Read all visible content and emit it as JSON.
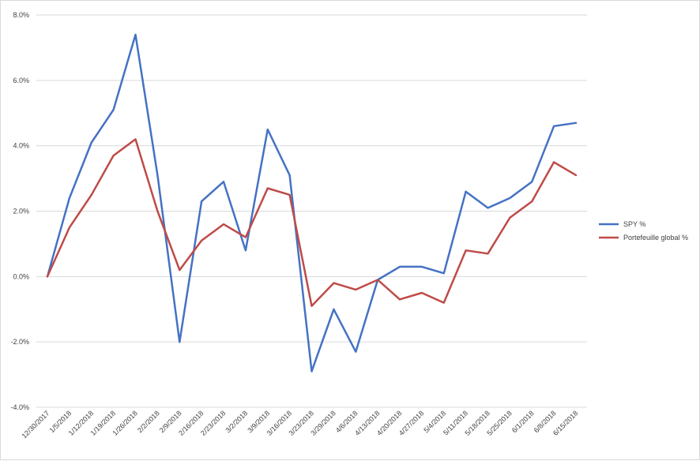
{
  "chart_data": {
    "type": "line",
    "title": "",
    "xlabel": "",
    "ylabel": "",
    "ylim": [
      -0.04,
      0.08
    ],
    "y_ticks": [
      "8.0%",
      "6.0%",
      "4.0%",
      "2.0%",
      "0.0%",
      "-2.0%",
      "-4.0%"
    ],
    "y_tick_values": [
      0.08,
      0.06,
      0.04,
      0.02,
      0.0,
      -0.02,
      -0.04
    ],
    "grid": true,
    "legend_position": "right",
    "categories": [
      "12/30/2017",
      "1/5/2018",
      "1/12/2018",
      "1/19/2018",
      "1/26/2018",
      "2/2/2018",
      "2/9/2018",
      "2/16/2018",
      "2/23/2018",
      "3/2/2018",
      "3/9/2018",
      "3/16/2018",
      "3/23/2018",
      "3/29/2018",
      "4/6/2018",
      "4/13/2018",
      "4/20/2018",
      "4/27/2018",
      "5/4/2018",
      "5/11/2018",
      "5/18/2018",
      "5/25/2018",
      "6/1/2018",
      "6/8/2018",
      "6/15/2018"
    ],
    "series": [
      {
        "name": "SPY %",
        "color": "#4472c4",
        "values": [
          0.0,
          0.024,
          0.041,
          0.051,
          0.074,
          0.031,
          -0.02,
          0.023,
          0.029,
          0.008,
          0.045,
          0.031,
          -0.029,
          -0.01,
          -0.023,
          -0.001,
          0.003,
          0.003,
          0.001,
          0.026,
          0.021,
          0.024,
          0.029,
          0.046,
          0.047
        ]
      },
      {
        "name": "Portefeuille global %",
        "color": "#be4b48",
        "values": [
          0.0,
          0.015,
          0.025,
          0.037,
          0.042,
          0.02,
          0.002,
          0.011,
          0.016,
          0.012,
          0.027,
          0.025,
          -0.009,
          -0.002,
          -0.004,
          -0.001,
          -0.007,
          -0.005,
          -0.008,
          0.008,
          0.007,
          0.018,
          0.023,
          0.035,
          0.031
        ]
      }
    ]
  }
}
